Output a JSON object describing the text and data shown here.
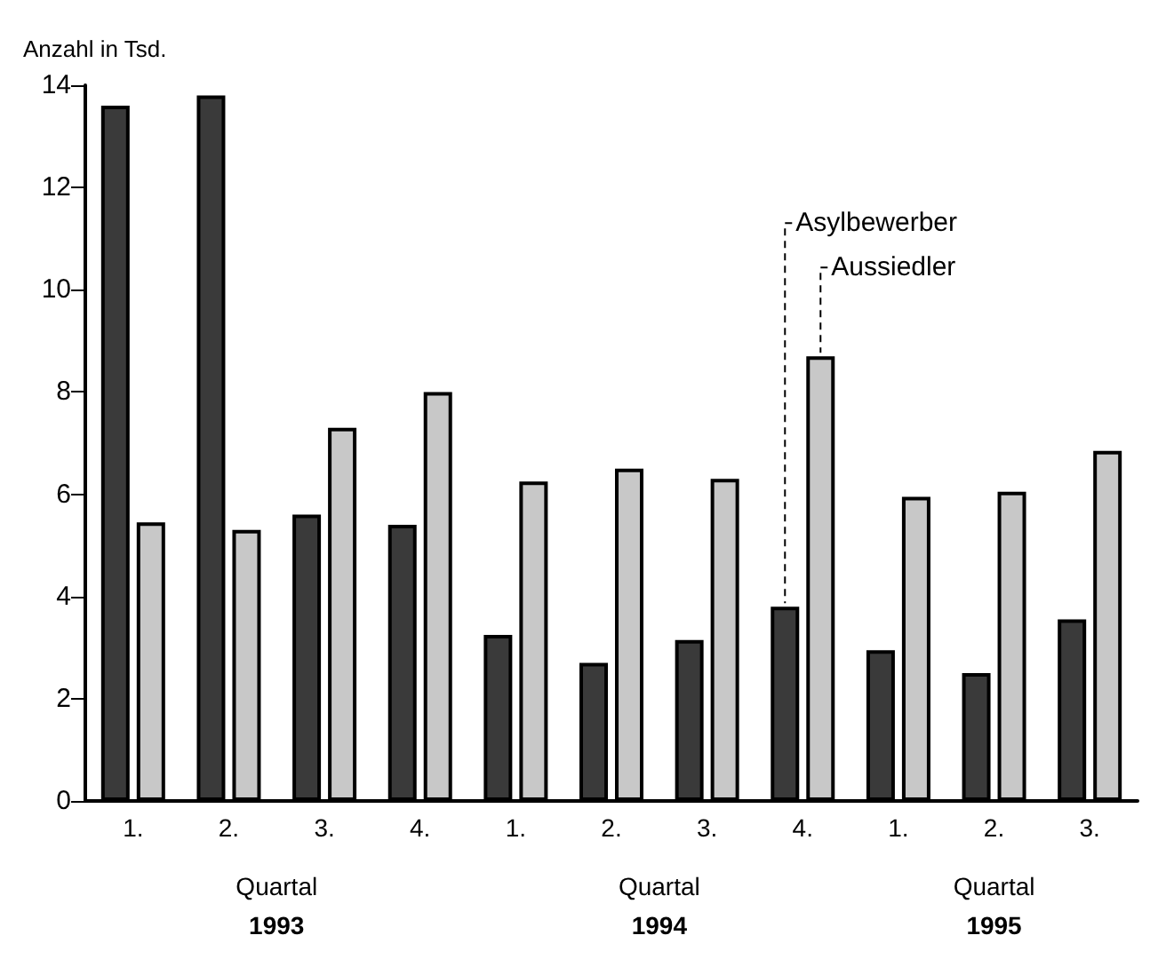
{
  "chart_data": {
    "type": "bar",
    "ylabel": "Anzahl in Tsd.",
    "categories": [
      "1.",
      "2.",
      "3.",
      "4.",
      "1.",
      "2.",
      "3.",
      "4.",
      "1.",
      "2.",
      "3."
    ],
    "series": [
      {
        "name": "Asylbewerber",
        "color": "#3a3a3a",
        "values": [
          13.6,
          13.8,
          5.6,
          5.4,
          3.25,
          2.7,
          3.15,
          3.8,
          2.95,
          2.5,
          3.55
        ]
      },
      {
        "name": "Aussiedler",
        "color": "#c8c8c8",
        "values": [
          5.45,
          5.3,
          7.3,
          8.0,
          6.25,
          6.5,
          6.3,
          8.7,
          5.95,
          6.05,
          6.85
        ]
      }
    ],
    "ylim": [
      0,
      14
    ],
    "yticks": [
      0,
      2,
      4,
      6,
      8,
      10,
      12,
      14
    ],
    "grid": false,
    "legend": false,
    "annotations": [
      "Quartal\n1993",
      "Quartal\n1994",
      "Quartal\n1995"
    ]
  }
}
